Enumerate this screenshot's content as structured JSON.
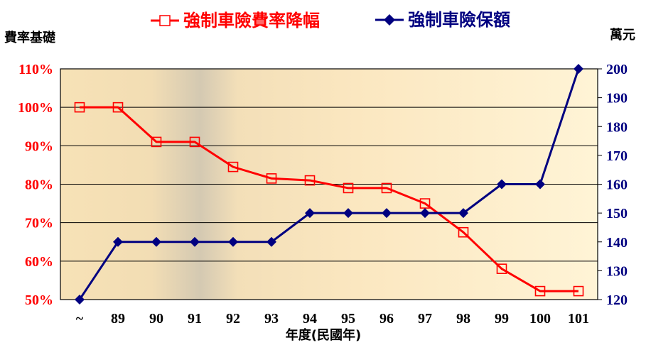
{
  "chart_data": {
    "type": "line",
    "categories": [
      "~",
      "89",
      "90",
      "91",
      "92",
      "93",
      "94",
      "95",
      "96",
      "97",
      "98",
      "99",
      "100",
      "101"
    ],
    "xlabel": "年度(民國年)",
    "ylabel_left": "費率基礎",
    "ylabel_right": "萬元",
    "left_axis": {
      "ylim": [
        50,
        110
      ],
      "ticks": [
        "50%",
        "60%",
        "70%",
        "80%",
        "90%",
        "100%",
        "110%"
      ],
      "tick_values": [
        50,
        60,
        70,
        80,
        90,
        100,
        110
      ]
    },
    "right_axis": {
      "ylim": [
        120,
        200
      ],
      "ticks": [
        "120",
        "130",
        "140",
        "150",
        "160",
        "170",
        "180",
        "190",
        "200"
      ],
      "tick_values": [
        120,
        130,
        140,
        150,
        160,
        170,
        180,
        190,
        200
      ]
    },
    "series": [
      {
        "name": "強制車險費率降幅",
        "axis": "left",
        "color": "#ff0000",
        "marker": "open-square",
        "values": [
          100,
          100,
          91,
          91,
          84.5,
          81.5,
          81,
          79,
          79,
          75,
          67.5,
          58,
          52.2,
          52.2
        ]
      },
      {
        "name": "強制車險保額",
        "axis": "right",
        "color": "#000080",
        "marker": "filled-diamond",
        "values": [
          120,
          140,
          140,
          140,
          140,
          140,
          150,
          150,
          150,
          150,
          150,
          160,
          160,
          200
        ]
      }
    ],
    "grid": "horizontal",
    "legend": "top-center"
  }
}
